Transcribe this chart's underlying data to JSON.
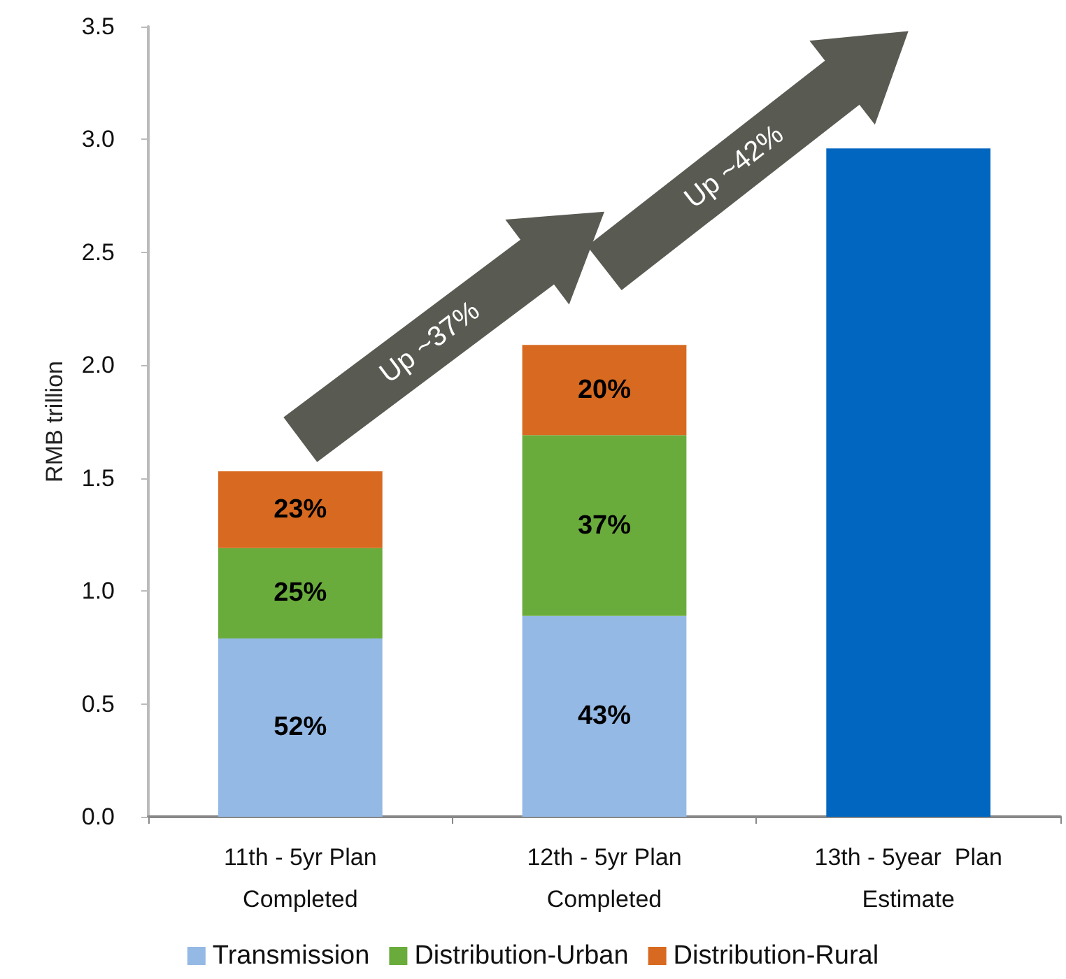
{
  "chart_data": {
    "type": "bar",
    "stacked": true,
    "ylabel": "RMB trillion",
    "categories": [
      "11th - 5yr Plan\nCompleted",
      "12th - 5yr Plan\nCompleted",
      "13th - 5year  Plan\nEstimate"
    ],
    "series": [
      {
        "name": "Transmission",
        "color": "#95b9e5",
        "values": [
          0.79,
          0.89,
          null
        ]
      },
      {
        "name": "Distribution-Urban",
        "color": "#6aac3c",
        "values": [
          0.4,
          0.8,
          null
        ]
      },
      {
        "name": "Distribution-Rural",
        "color": "#d76a20",
        "values": [
          0.34,
          0.4,
          null
        ]
      },
      {
        "color": "#0066bf",
        "values": [
          null,
          null,
          2.96
        ]
      }
    ],
    "ylim": [
      0,
      3.5
    ],
    "yticks": [
      {
        "value": 0,
        "label": "0.0"
      },
      {
        "value": 0.5,
        "label": "0.5"
      },
      {
        "value": 1,
        "label": "1.0"
      },
      {
        "value": 1.5,
        "label": "1.5"
      },
      {
        "value": 2,
        "label": "2.0"
      },
      {
        "value": 2.5,
        "label": "2.5"
      },
      {
        "value": 3,
        "label": "3.0"
      },
      {
        "value": 3.5,
        "label": "3.5"
      }
    ],
    "grid": false,
    "legend": "bottom",
    "annotations": [
      "Up ~37%",
      "Up ~42%",
      "52%",
      "25%",
      "23%",
      "43%",
      "37%",
      "20%"
    ]
  }
}
